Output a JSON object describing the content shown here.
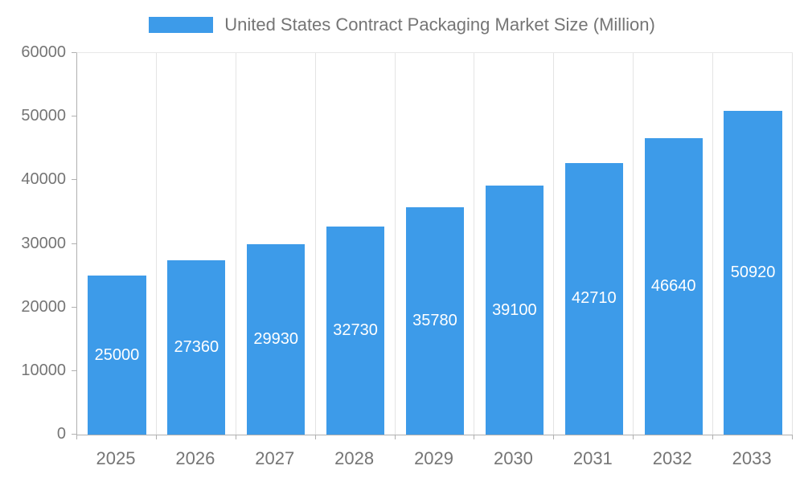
{
  "chart_data": {
    "type": "bar",
    "title": "United States Contract Packaging Market Size (Million)",
    "categories": [
      "2025",
      "2026",
      "2027",
      "2028",
      "2029",
      "2030",
      "2031",
      "2032",
      "2033"
    ],
    "values": [
      25000,
      27360,
      29930,
      32730,
      35780,
      39100,
      42710,
      46640,
      50920
    ],
    "xlabel": "",
    "ylabel": "",
    "ylim": [
      0,
      60000
    ],
    "yticks": [
      0,
      10000,
      20000,
      30000,
      40000,
      50000,
      60000
    ],
    "grid": "vertical",
    "legend_position": "top-center",
    "bar_label_position": "inside-center",
    "colors": {
      "bar": "#3d9be9",
      "bar_label": "#ffffff",
      "axis_line": "#b0b0b0",
      "gridline": "#e4e4e4",
      "tick_text": "#757575",
      "title_text": "#757575",
      "background": "#ffffff"
    }
  }
}
